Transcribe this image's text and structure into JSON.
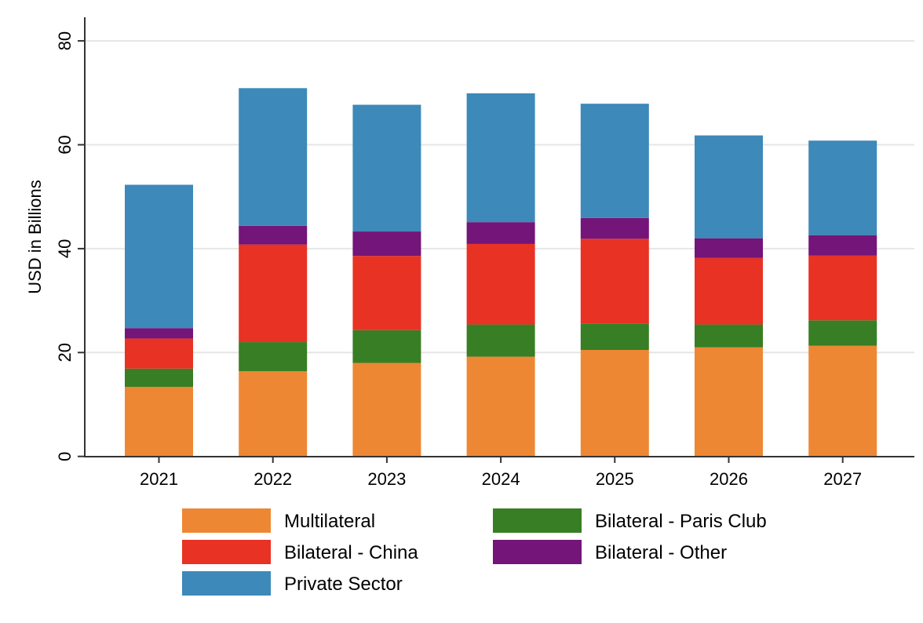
{
  "chart_data": {
    "type": "bar",
    "stacked": true,
    "title": "",
    "xlabel": "",
    "ylabel": "USD in Billions",
    "ylim": [
      0,
      80
    ],
    "yticks": [
      0,
      20,
      40,
      60,
      80
    ],
    "grid": true,
    "legend_position": "bottom",
    "categories": [
      "2021",
      "2022",
      "2023",
      "2024",
      "2025",
      "2026",
      "2027"
    ],
    "series": [
      {
        "name": "Multilateral",
        "color": "#EE8733",
        "values": [
          13.4,
          16.4,
          18.0,
          19.2,
          20.5,
          21.0,
          21.3
        ]
      },
      {
        "name": "Bilateral - Paris Club",
        "color": "#387E24",
        "values": [
          3.5,
          5.6,
          6.3,
          6.2,
          5.1,
          4.4,
          4.9
        ]
      },
      {
        "name": "Bilateral - China",
        "color": "#E83223",
        "values": [
          5.8,
          18.8,
          14.3,
          15.5,
          16.3,
          12.8,
          12.5
        ]
      },
      {
        "name": "Bilateral - Other",
        "color": "#731579",
        "values": [
          2.0,
          3.6,
          4.7,
          4.2,
          4.0,
          3.8,
          3.9
        ]
      },
      {
        "name": "Private Sector",
        "color": "#3D89B9",
        "values": [
          27.6,
          26.5,
          24.4,
          24.8,
          22.0,
          19.8,
          18.2
        ]
      }
    ],
    "totals": [
      52.3,
      70.9,
      67.7,
      69.9,
      67.9,
      61.8,
      60.8
    ],
    "legend": [
      {
        "label": "Multilateral",
        "color": "#EE8733"
      },
      {
        "label": "Bilateral - Paris Club",
        "color": "#387E24"
      },
      {
        "label": "Bilateral - China",
        "color": "#E83223"
      },
      {
        "label": "Bilateral - Other",
        "color": "#731579"
      },
      {
        "label": "Private Sector",
        "color": "#3D89B9"
      }
    ]
  }
}
